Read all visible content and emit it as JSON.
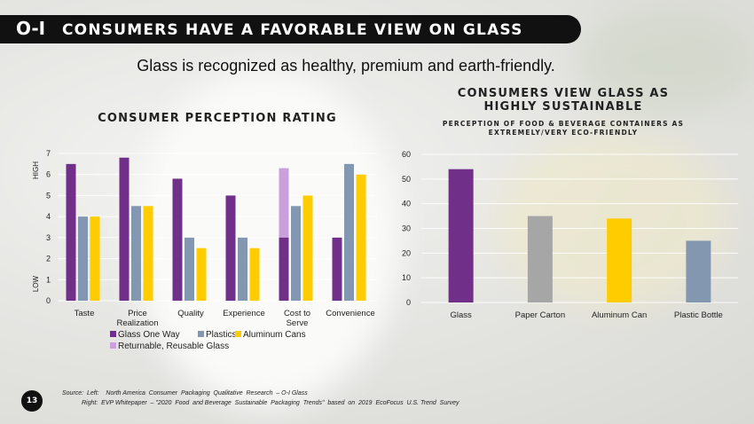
{
  "header": {
    "logo": "O-I",
    "title": "CONSUMERS HAVE A FAVORABLE VIEW ON GLASS"
  },
  "subtitle": "Glass is recognized as healthy, premium and earth-friendly.",
  "page_number": "13",
  "source": {
    "line1": "Source:  Left:    North America  Consumer  Packaging  Qualitative  Research  – O-I Glass",
    "line2": "Right:  EVP Whitepaper  – \"2020  Food  and Beverage  Sustainable  Packaging  Trends\"  based  on  2019  EcoFocus  U.S. Trend  Survey"
  },
  "chart_data": [
    {
      "type": "bar",
      "title": "CONSUMER PERCEPTION RATING",
      "ylim": [
        0,
        7
      ],
      "yticks": [
        0,
        1,
        2,
        3,
        4,
        5,
        6,
        7
      ],
      "ylabel_high": "HIGH",
      "ylabel_low": "LOW",
      "categories": [
        "Taste",
        "Price Realization",
        "Quality",
        "Experience",
        "Cost to Serve",
        "Convenience"
      ],
      "series": [
        {
          "name": "Glass One Way",
          "color": "#70308a",
          "values": [
            6.5,
            6.8,
            5.8,
            5,
            3,
            3
          ]
        },
        {
          "name": "Plastics",
          "color": "#8497b0",
          "values": [
            4,
            4.5,
            3,
            3,
            4.5,
            6.5
          ]
        },
        {
          "name": "Aluminum Cans",
          "color": "#ffcc00",
          "values": [
            4,
            4.5,
            2.5,
            2.5,
            5,
            6
          ]
        },
        {
          "name": "Returnable, Reusable Glass",
          "color": "#c9a0dc",
          "values": [
            null,
            null,
            null,
            null,
            6.3,
            null
          ],
          "stacked_on": "Glass One Way"
        }
      ],
      "legend": "bottom",
      "grid": true
    },
    {
      "type": "bar",
      "title": "CONSUMERS VIEW GLASS AS HIGHLY SUSTAINABLE",
      "subtitle": "PERCEPTION OF FOOD & BEVERAGE CONTAINERS AS EXTREMELY/VERY ECO-FRIENDLY",
      "ylim": [
        0,
        60
      ],
      "yticks": [
        0,
        10,
        20,
        30,
        40,
        50,
        60
      ],
      "categories": [
        "Glass",
        "Paper Carton",
        "Aluminum Can",
        "Plastic Bottle"
      ],
      "values": [
        54,
        35,
        34,
        25
      ],
      "colors": [
        "#70308a",
        "#a6a6a6",
        "#ffcc00",
        "#8497b0"
      ],
      "grid": true
    }
  ]
}
